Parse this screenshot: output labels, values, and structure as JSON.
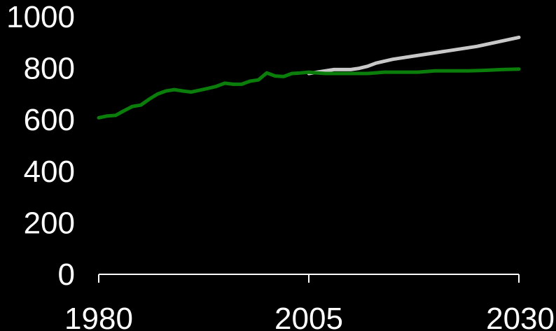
{
  "chart_data": {
    "type": "line",
    "title": "",
    "xlabel": "",
    "ylabel": "",
    "xlim": [
      1980,
      2030
    ],
    "ylim": [
      0,
      1000
    ],
    "x_ticks": [
      "1980",
      "2005",
      "2030"
    ],
    "y_ticks": [
      "0",
      "200",
      "400",
      "600",
      "800",
      "1000"
    ],
    "grid": false,
    "legend": "none",
    "background_color": "#000000",
    "text_color": "#ffffff",
    "series": [
      {
        "color": "#c8c8c8",
        "x": [
          2005,
          2008,
          2010,
          2011,
          2012,
          2013,
          2015,
          2020,
          2025,
          2030
        ],
        "values": [
          780,
          795,
          795,
          800,
          808,
          820,
          835,
          860,
          885,
          920
        ]
      },
      {
        "color": "#0a7d0a",
        "x": [
          1980,
          1981,
          1982,
          1983,
          1984,
          1985,
          1986,
          1987,
          1988,
          1989,
          1990,
          1991,
          1992,
          1993,
          1994,
          1995,
          1996,
          1997,
          1998,
          1999,
          2000,
          2001,
          2002,
          2003,
          2004,
          2005,
          2006,
          2007,
          2010,
          2012,
          2014,
          2016,
          2018,
          2020,
          2022,
          2024,
          2026,
          2028,
          2030
        ],
        "values": [
          608,
          615,
          617,
          635,
          652,
          657,
          680,
          700,
          712,
          717,
          712,
          708,
          715,
          722,
          730,
          742,
          738,
          738,
          750,
          755,
          782,
          770,
          768,
          780,
          782,
          785,
          782,
          780,
          780,
          780,
          785,
          785,
          785,
          790,
          790,
          790,
          792,
          795,
          797
        ]
      }
    ]
  }
}
